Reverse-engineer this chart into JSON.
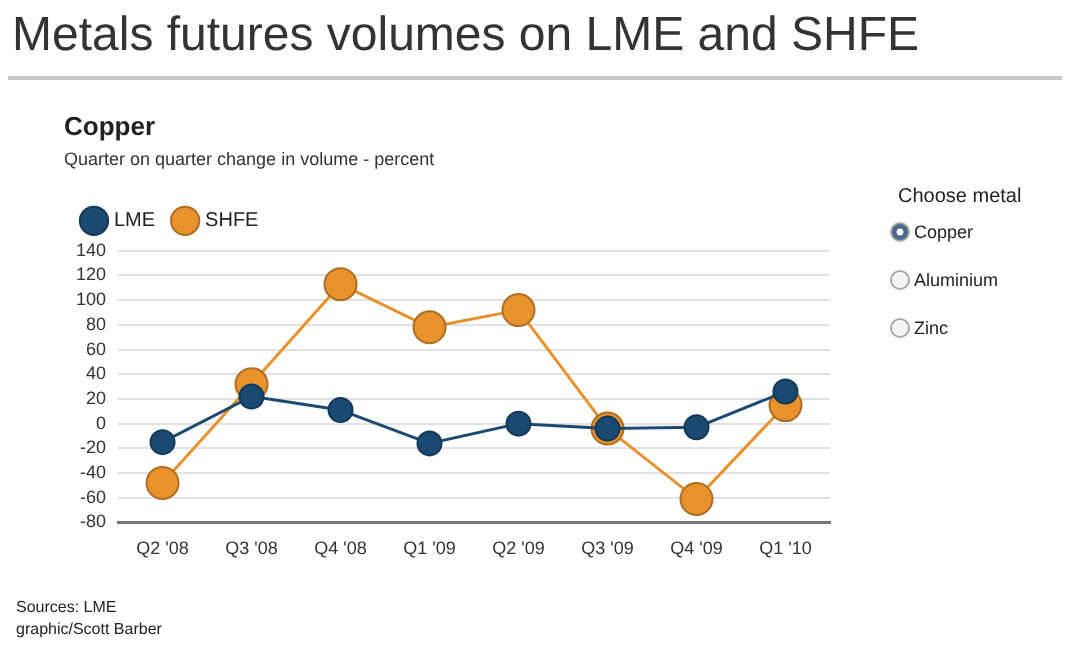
{
  "chart_data": {
    "type": "line",
    "title": "Copper",
    "subtitle": "Quarter on quarter change in volume - percent",
    "categories": [
      "Q2 '08",
      "Q3 '08",
      "Q4 '08",
      "Q1 '09",
      "Q2 '09",
      "Q3 '09",
      "Q4 '09",
      "Q1 '10"
    ],
    "series": [
      {
        "name": "LME",
        "color": "#1a4a72",
        "values": [
          -15,
          22,
          11,
          -16,
          0,
          -4,
          -3,
          26
        ]
      },
      {
        "name": "SHFE",
        "color": "#e8922e",
        "values": [
          -48,
          32,
          113,
          78,
          92,
          -4,
          -61,
          15
        ]
      }
    ],
    "ylim": [
      -80,
      140
    ],
    "yticks": [
      -80,
      -60,
      -40,
      -20,
      0,
      20,
      40,
      60,
      80,
      100,
      120,
      140
    ],
    "grid": "y",
    "legend": "top left",
    "marker": "circle",
    "line_style": "solid",
    "annotations": [
      "Metals futures volumes on LME and SHFE",
      "Choose metal",
      "Copper",
      "Aluminium",
      "Zinc",
      "Sources: LME",
      "graphic/Scott Barber"
    ]
  }
}
